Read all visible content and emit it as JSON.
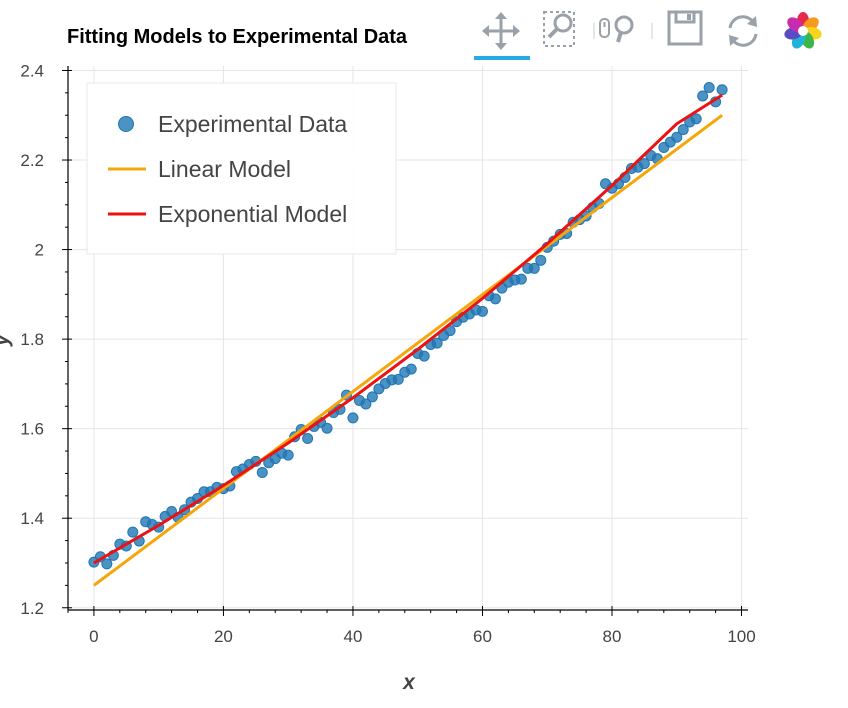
{
  "toolbar": {
    "tools": [
      "pan-tool",
      "box-zoom-tool",
      "wheel-zoom-tool",
      "save-tool",
      "reset-tool",
      "bokeh-logo"
    ],
    "active": "pan-tool",
    "accent_color": "#26aae1"
  },
  "chart_data": {
    "type": "scatter",
    "title": "Fitting Models to Experimental Data",
    "xlabel": "x",
    "ylabel": "y",
    "xlim": [
      -4,
      101
    ],
    "ylim": [
      1.195,
      2.41
    ],
    "xticks": [
      0,
      20,
      40,
      60,
      80,
      100
    ],
    "xtick_labels": [
      "0",
      "20",
      "40",
      "60",
      "80",
      "100"
    ],
    "yticks": [
      1.2,
      1.4,
      1.6,
      1.8,
      2.0,
      2.2,
      2.4
    ],
    "ytick_labels": [
      "1.2",
      "1.4",
      "1.6",
      "1.8",
      "2",
      "2.2",
      "2.4"
    ],
    "grid": true,
    "legend_position": "top-left",
    "series": [
      {
        "name": "Experimental Data",
        "kind": "scatter",
        "color": "#1f77b4",
        "x": [
          0,
          1,
          2,
          3,
          4,
          5,
          6,
          7,
          8,
          9,
          10,
          11,
          12,
          13,
          14,
          15,
          16,
          17,
          18,
          19,
          20,
          21,
          22,
          23,
          24,
          25,
          26,
          27,
          28,
          29,
          30,
          31,
          32,
          33,
          34,
          35,
          36,
          37,
          38,
          39,
          40,
          41,
          42,
          43,
          44,
          45,
          46,
          47,
          48,
          49,
          50,
          51,
          52,
          53,
          54,
          55,
          56,
          57,
          58,
          59,
          60,
          61,
          62,
          63,
          64,
          65,
          66,
          67,
          68,
          69,
          70,
          71,
          72,
          73,
          74,
          75,
          76,
          77,
          78,
          79,
          80,
          81,
          82,
          83,
          84,
          85,
          86,
          87,
          88,
          89,
          90,
          91,
          92,
          93,
          94,
          95,
          96,
          97
        ],
        "y": [
          1.302,
          1.314,
          1.298,
          1.317,
          1.342,
          1.338,
          1.369,
          1.349,
          1.392,
          1.386,
          1.38,
          1.404,
          1.415,
          1.402,
          1.419,
          1.436,
          1.444,
          1.459,
          1.459,
          1.469,
          1.466,
          1.472,
          1.504,
          1.51,
          1.52,
          1.527,
          1.502,
          1.524,
          1.533,
          1.545,
          1.541,
          1.582,
          1.598,
          1.578,
          1.605,
          1.614,
          1.601,
          1.636,
          1.643,
          1.675,
          1.624,
          1.663,
          1.655,
          1.671,
          1.689,
          1.701,
          1.709,
          1.71,
          1.726,
          1.733,
          1.768,
          1.762,
          1.788,
          1.791,
          1.808,
          1.819,
          1.839,
          1.849,
          1.856,
          1.865,
          1.862,
          1.897,
          1.89,
          1.914,
          1.927,
          1.932,
          1.934,
          1.958,
          1.958,
          1.976,
          2.005,
          2.019,
          2.034,
          2.036,
          2.061,
          2.067,
          2.075,
          2.094,
          2.103,
          2.147,
          2.137,
          2.147,
          2.161,
          2.181,
          2.184,
          2.192,
          2.21,
          2.203,
          2.228,
          2.24,
          2.251,
          2.268,
          2.285,
          2.292,
          2.343,
          2.362,
          2.33,
          2.357
        ]
      },
      {
        "name": "Linear Model",
        "kind": "line",
        "color": "#f5a70a",
        "x": [
          0,
          97
        ],
        "y": [
          1.25,
          2.3
        ]
      },
      {
        "name": "Exponential Model",
        "kind": "line",
        "color": "#ee1111",
        "x": [
          0,
          10,
          20,
          30,
          40,
          50,
          60,
          70,
          80,
          90,
          97
        ],
        "y": [
          1.3,
          1.384,
          1.473,
          1.568,
          1.669,
          1.777,
          1.891,
          2.013,
          2.143,
          2.281,
          2.345
        ]
      }
    ]
  }
}
